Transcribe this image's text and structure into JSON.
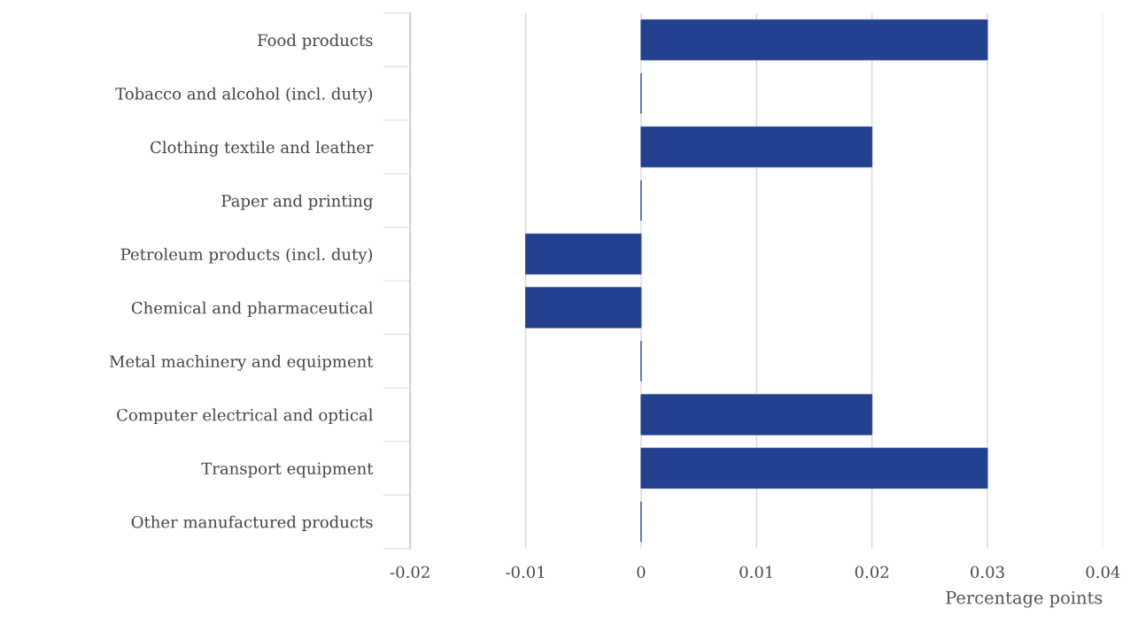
{
  "chart_data": {
    "type": "bar",
    "orientation": "horizontal",
    "categories": [
      "Food products",
      "Tobacco and alcohol (incl. duty)",
      "Clothing textile and leather",
      "Paper and printing",
      "Petroleum products (incl. duty)",
      "Chemical and pharmaceutical",
      "Metal machinery and equipment",
      "Computer electrical and optical",
      "Transport equipment",
      "Other manufactured products"
    ],
    "values": [
      0.03,
      0,
      0.02,
      0,
      -0.01,
      -0.01,
      0,
      0.02,
      0.03,
      0
    ],
    "color": "#23418f",
    "xlim": [
      -0.02,
      0.04
    ],
    "xticks": [
      -0.02,
      -0.01,
      0,
      0.01,
      0.02,
      0.03,
      0.04
    ],
    "xlabel": "Percentage points",
    "grid": "x",
    "legend": false
  }
}
